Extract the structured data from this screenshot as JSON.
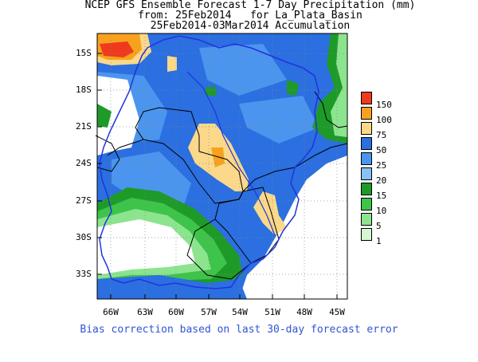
{
  "title": {
    "line1": "NCEP GFS Ensemble Forecast 1-7 Day Precipitation (mm)",
    "line2": "from: 25Feb2014   for La_Plata_Basin",
    "line3": "25Feb2014-03Mar2014 Accumulation"
  },
  "axes": {
    "lat_labels": [
      "15S",
      "18S",
      "21S",
      "24S",
      "27S",
      "30S",
      "33S"
    ],
    "lon_labels": [
      "66W",
      "63W",
      "60W",
      "57W",
      "54W",
      "51W",
      "48W",
      "45W"
    ]
  },
  "legend": {
    "items": [
      {
        "label": "150",
        "color": "#f03a1e"
      },
      {
        "label": "100",
        "color": "#f7a21e"
      },
      {
        "label": "75",
        "color": "#fbd88a"
      },
      {
        "label": "50",
        "color": "#2b6fe0"
      },
      {
        "label": "25",
        "color": "#4b95ee"
      },
      {
        "label": "20",
        "color": "#86c2f5"
      },
      {
        "label": "15",
        "color": "#1e9a28"
      },
      {
        "label": "10",
        "color": "#3ec44a"
      },
      {
        "label": "5",
        "color": "#8ce48f"
      },
      {
        "label": "1",
        "color": "#d7f7d2"
      }
    ]
  },
  "footer": "Bias correction based on last 30-day forecast error"
}
